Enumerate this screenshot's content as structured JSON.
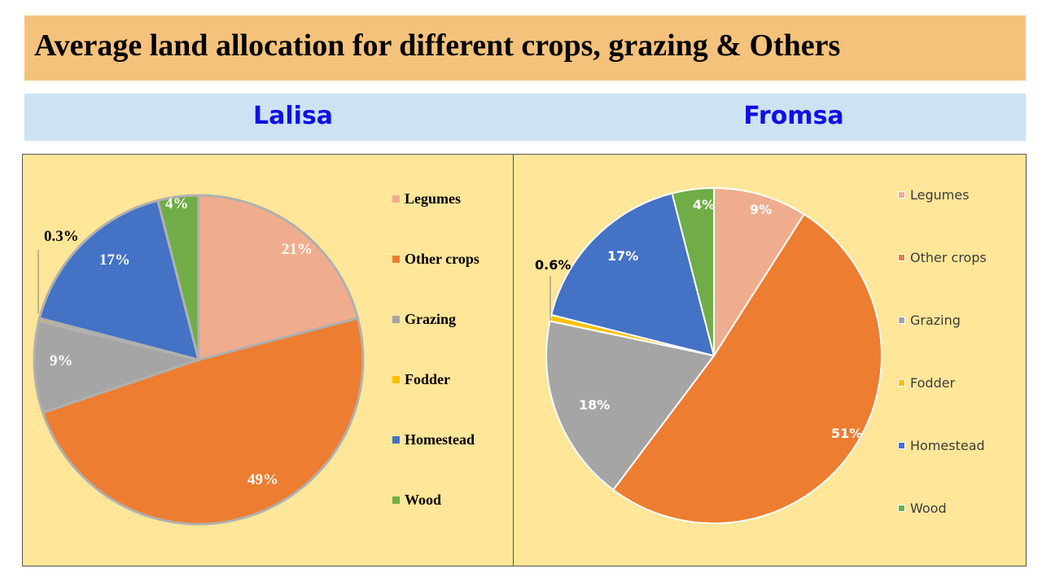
{
  "title": "Average land allocation for different crops, grazing & Others",
  "subtitles": {
    "left": "Lalisa",
    "right": "Fromsa"
  },
  "colors": {
    "Legumes": "#f0ad8e",
    "Other crops": "#ed7d31",
    "Grazing": "#a5a5a5",
    "Fodder": "#ffc000",
    "Homestead": "#4472c4",
    "Wood": "#70ad47"
  },
  "chart_data": [
    {
      "type": "pie",
      "name": "Lalisa",
      "categories": [
        "Legumes",
        "Other crops",
        "Grazing",
        "Fodder",
        "Homestead",
        "Wood"
      ],
      "values": [
        21,
        49,
        9,
        0.3,
        17,
        4
      ],
      "labels": [
        "21%",
        "49%",
        "9%",
        "0.3%",
        "17%",
        "4%"
      ],
      "legend": "right"
    },
    {
      "type": "pie",
      "name": "Fromsa",
      "categories": [
        "Legumes",
        "Other crops",
        "Grazing",
        "Fodder",
        "Homestead",
        "Wood"
      ],
      "values": [
        9,
        51,
        18,
        0.6,
        17,
        4
      ],
      "labels": [
        "9%",
        "51%",
        "18%",
        "0.6%",
        "17%",
        "4%"
      ],
      "legend": "right"
    }
  ]
}
